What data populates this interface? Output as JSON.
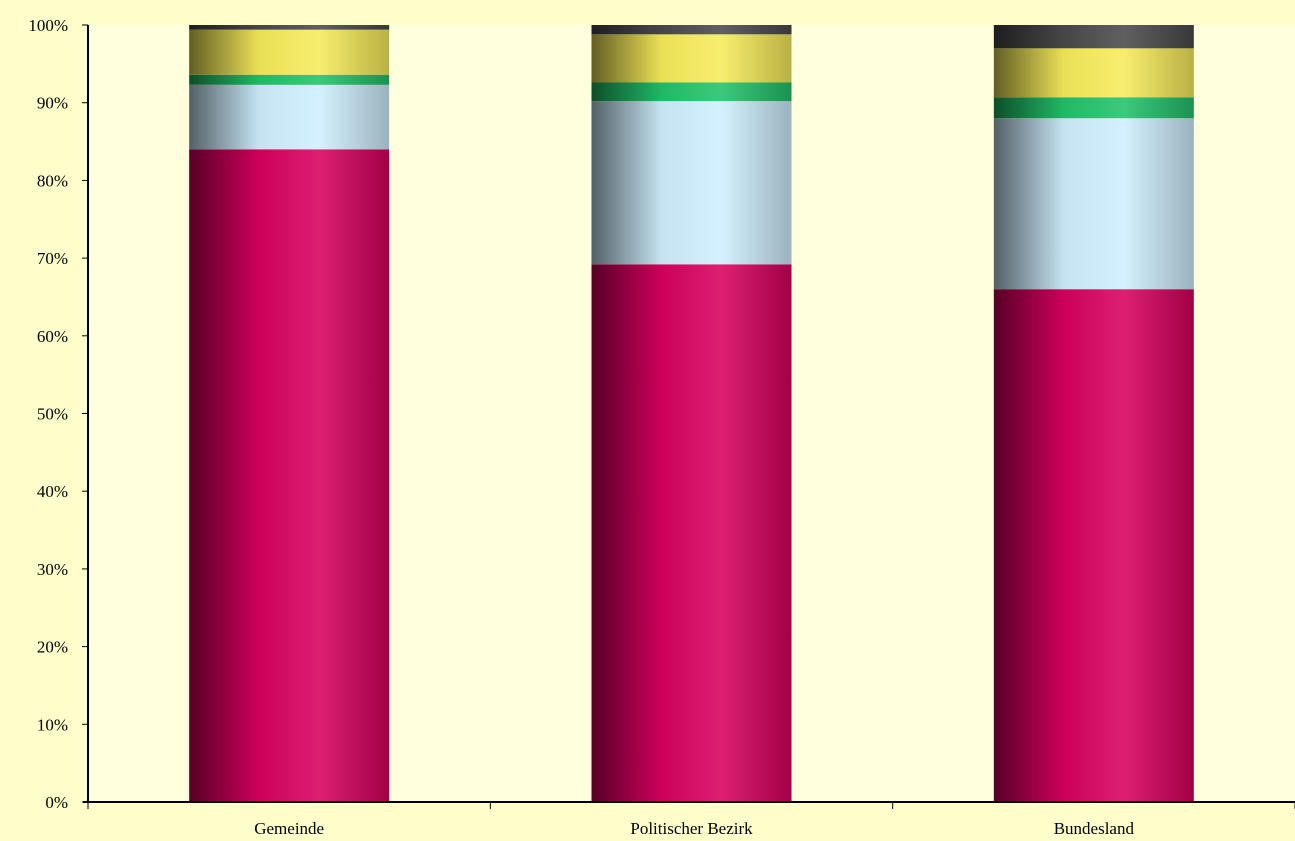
{
  "chart_data": {
    "type": "bar",
    "stacked": true,
    "percent": true,
    "categories": [
      "Gemeinde",
      "Politischer Bezirk",
      "Bundesland"
    ],
    "series": [
      {
        "values": [
          84.0,
          69.2,
          66.0
        ],
        "color": "#d8005f"
      },
      {
        "values": [
          8.3,
          21.0,
          22.0
        ],
        "color": "#cfefff"
      },
      {
        "values": [
          1.3,
          2.4,
          2.7
        ],
        "color": "#22c26a"
      },
      {
        "values": [
          5.8,
          6.2,
          6.3
        ],
        "color": "#f6ec5a"
      },
      {
        "values": [
          0.6,
          1.2,
          3.0
        ],
        "color": "#4a4a4a"
      }
    ],
    "ylim": [
      0,
      100
    ],
    "yticks": [
      "0%",
      "10%",
      "20%",
      "30%",
      "40%",
      "50%",
      "60%",
      "70%",
      "80%",
      "90%",
      "100%"
    ],
    "title": "",
    "xlabel": "",
    "ylabel": "",
    "grid": false,
    "legend": "none"
  }
}
